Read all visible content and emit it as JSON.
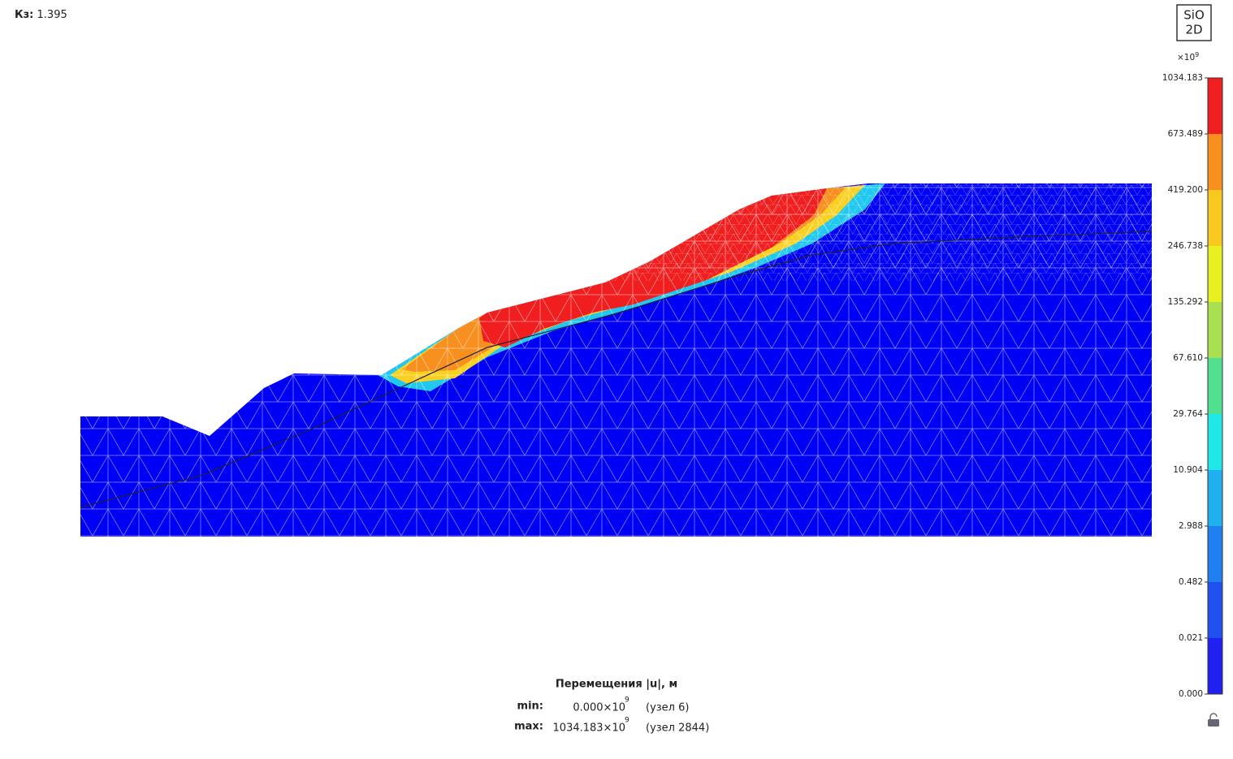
{
  "header": {
    "label": "Кз:",
    "value": "1.395"
  },
  "logo": {
    "line1": "SiO",
    "line2": "2D"
  },
  "colorbar": {
    "multiplier": "×10",
    "exponent": "9",
    "ticks": [
      "1034.183",
      "673.489",
      "419.200",
      "246.738",
      "135.292",
      "67.610",
      "29.764",
      "10.904",
      "2.988",
      "0.482",
      "0.021",
      "0.000"
    ],
    "colors": [
      "#f02020",
      "#f7901e",
      "#f9c81e",
      "#e8f020",
      "#a8e050",
      "#50e090",
      "#20e8e8",
      "#20b0f0",
      "#2080f0",
      "#2050f0",
      "#2020f0"
    ]
  },
  "legend": {
    "title": "Перемещения |u|, м",
    "min": {
      "label": "min:",
      "value": "0.000×10",
      "exponent": "9",
      "node": "(узел 6)"
    },
    "max": {
      "label": "max:",
      "value": "1034.183×10",
      "exponent": "9",
      "node": "(узел 2844)"
    }
  }
}
